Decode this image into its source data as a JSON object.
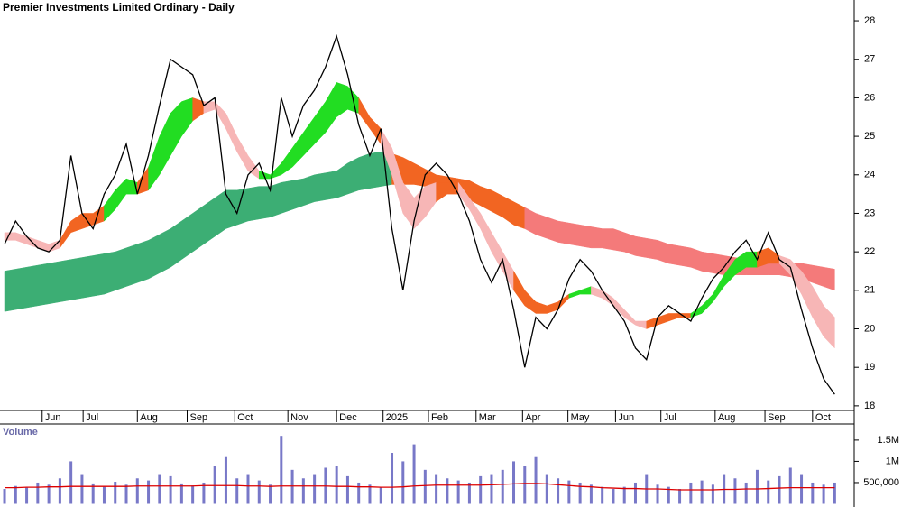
{
  "chart_data": [
    {
      "type": "price",
      "title": "Premier Investments Limited Ordinary - Daily",
      "xlim": [
        -0.41,
        76.6
      ],
      "ylim": [
        17.88,
        28.54
      ],
      "yticks": [
        18,
        19,
        20,
        21,
        22,
        23,
        24,
        25,
        26,
        27,
        28
      ],
      "xticks": [
        {
          "value": 3.4,
          "label": "Jun"
        },
        {
          "value": 7.1,
          "label": "Jul"
        },
        {
          "value": 12.0,
          "label": "Aug"
        },
        {
          "value": 16.5,
          "label": "Sep"
        },
        {
          "value": 20.8,
          "label": "Oct"
        },
        {
          "value": 25.6,
          "label": "Nov"
        },
        {
          "value": 30.0,
          "label": "Dec"
        },
        {
          "value": 34.2,
          "label": "2025"
        },
        {
          "value": 38.3,
          "label": "Feb"
        },
        {
          "value": 42.6,
          "label": "Mar"
        },
        {
          "value": 46.8,
          "label": "Apr"
        },
        {
          "value": 50.9,
          "label": "May"
        },
        {
          "value": 55.2,
          "label": "Jun"
        },
        {
          "value": 59.3,
          "label": "Jul"
        },
        {
          "value": 64.2,
          "label": "Aug"
        },
        {
          "value": 68.7,
          "label": "Sep"
        },
        {
          "value": 73.0,
          "label": "Oct"
        }
      ],
      "color": "#000000",
      "values": [
        22.2,
        22.8,
        22.4,
        22.1,
        22.0,
        22.3,
        24.5,
        23.0,
        22.6,
        23.5,
        24.0,
        24.8,
        23.5,
        24.5,
        25.8,
        27.0,
        26.8,
        26.6,
        25.8,
        26.0,
        23.5,
        23.0,
        24.0,
        24.3,
        23.6,
        26.0,
        25.0,
        25.8,
        26.2,
        26.8,
        27.6,
        26.6,
        25.3,
        24.5,
        25.2,
        22.6,
        21.0,
        22.8,
        24.0,
        24.3,
        24.0,
        23.5,
        22.8,
        21.8,
        21.2,
        21.8,
        20.5,
        19.0,
        20.3,
        20.0,
        20.5,
        21.3,
        21.8,
        21.5,
        21.0,
        20.6,
        20.2,
        19.5,
        19.2,
        20.3,
        20.6,
        20.4,
        20.2,
        20.8,
        21.3,
        21.6,
        22.0,
        22.3,
        21.8,
        22.5,
        21.8,
        21.6,
        20.5,
        19.5,
        18.7,
        18.3
      ],
      "bands": [
        {
          "lower": [
            20.45,
            20.5,
            20.55,
            20.6,
            20.65,
            20.7,
            20.75,
            20.8,
            20.85,
            20.9,
            21.0,
            21.1,
            21.2,
            21.3,
            21.45,
            21.6,
            21.8,
            22.0,
            22.2,
            22.4,
            22.6,
            22.7,
            22.8,
            22.85,
            22.9,
            23.0,
            23.1,
            23.2,
            23.3,
            23.35,
            23.4,
            23.5,
            23.6,
            23.65,
            23.7,
            23.75,
            23.75,
            23.75,
            23.7,
            23.65,
            23.6,
            23.5,
            23.35,
            23.2,
            23.05,
            22.9,
            22.7,
            22.6,
            22.45,
            22.35,
            22.25,
            22.2,
            22.15,
            22.1,
            22.1,
            22.05,
            22.0,
            21.9,
            21.85,
            21.8,
            21.7,
            21.65,
            21.6,
            21.5,
            21.45,
            21.4,
            21.4,
            21.4,
            21.4,
            21.4,
            21.4,
            21.35,
            21.3,
            21.2,
            21.1,
            21.0
          ],
          "upper": [
            21.5,
            21.55,
            21.6,
            21.65,
            21.7,
            21.75,
            21.8,
            21.85,
            21.9,
            21.95,
            22.0,
            22.1,
            22.2,
            22.3,
            22.45,
            22.6,
            22.8,
            23.0,
            23.2,
            23.4,
            23.6,
            23.6,
            23.65,
            23.7,
            23.7,
            23.8,
            23.85,
            23.9,
            24.0,
            24.05,
            24.1,
            24.3,
            24.45,
            24.55,
            24.6,
            24.55,
            24.45,
            24.3,
            24.15,
            24.0,
            23.95,
            23.9,
            23.85,
            23.7,
            23.6,
            23.45,
            23.3,
            23.15,
            23.0,
            22.9,
            22.8,
            22.75,
            22.7,
            22.65,
            22.6,
            22.6,
            22.5,
            22.4,
            22.35,
            22.3,
            22.2,
            22.15,
            22.1,
            22.0,
            21.95,
            21.9,
            21.85,
            21.8,
            21.8,
            21.75,
            21.75,
            21.7,
            21.7,
            21.65,
            21.6,
            21.55
          ],
          "colors": [
            {
              "from": 0,
              "color": "#3cae74"
            },
            {
              "from": 35,
              "color": "#f26522"
            },
            {
              "from": 47,
              "color": "#f47a7a"
            }
          ]
        },
        {
          "lower": [
            22.3,
            22.3,
            22.2,
            22.1,
            22.0,
            22.1,
            22.5,
            22.6,
            22.7,
            22.8,
            23.1,
            23.5,
            23.5,
            23.6,
            24.0,
            24.5,
            25.0,
            25.4,
            25.6,
            25.7,
            25.2,
            24.6,
            24.1,
            23.9,
            23.9,
            24.0,
            24.2,
            24.5,
            24.8,
            25.1,
            25.5,
            25.7,
            25.6,
            25.2,
            24.8,
            24.0,
            23.0,
            22.6,
            22.9,
            23.3,
            23.5,
            23.5,
            23.1,
            22.6,
            22.0,
            21.5,
            21.0,
            20.6,
            20.4,
            20.4,
            20.5,
            20.8,
            20.9,
            20.9,
            20.8,
            20.6,
            20.3,
            20.1,
            20.0,
            20.1,
            20.2,
            20.3,
            20.3,
            20.4,
            20.7,
            21.1,
            21.4,
            21.6,
            21.6,
            21.7,
            21.7,
            21.4,
            20.9,
            20.3,
            19.8,
            19.5
          ],
          "upper": [
            22.5,
            22.5,
            22.4,
            22.3,
            22.2,
            22.3,
            22.8,
            23.0,
            23.0,
            23.2,
            23.6,
            23.9,
            23.8,
            24.2,
            25.0,
            25.6,
            25.9,
            26.0,
            25.9,
            25.9,
            25.6,
            25.0,
            24.5,
            24.1,
            24.0,
            24.3,
            24.7,
            25.1,
            25.5,
            25.9,
            26.4,
            26.3,
            26.0,
            25.5,
            25.2,
            24.7,
            23.8,
            23.4,
            23.7,
            23.8,
            23.8,
            23.8,
            23.4,
            23.0,
            22.5,
            22.0,
            21.5,
            21.0,
            20.7,
            20.6,
            20.7,
            20.9,
            21.0,
            21.1,
            21.0,
            20.8,
            20.5,
            20.2,
            20.2,
            20.3,
            20.4,
            20.4,
            20.4,
            20.6,
            20.9,
            21.4,
            21.8,
            22.0,
            22.0,
            22.1,
            21.9,
            21.8,
            21.5,
            21.1,
            20.6,
            20.3
          ],
          "colors": [
            {
              "from": 0,
              "color": "#f7b6b6"
            },
            {
              "from": 5,
              "color": "#f26522"
            },
            {
              "from": 9,
              "color": "#22dd22"
            },
            {
              "from": 12,
              "color": "#f26522"
            },
            {
              "from": 13,
              "color": "#22dd22"
            },
            {
              "from": 17,
              "color": "#f26522"
            },
            {
              "from": 18,
              "color": "#f7b6b6"
            },
            {
              "from": 23,
              "color": "#22dd22"
            },
            {
              "from": 32,
              "color": "#f26522"
            },
            {
              "from": 34,
              "color": "#f7b6b6"
            },
            {
              "from": 39,
              "color": "#f26522"
            },
            {
              "from": 41,
              "color": "#f7b6b6"
            },
            {
              "from": 46,
              "color": "#f26522"
            },
            {
              "from": 51,
              "color": "#22dd22"
            },
            {
              "from": 53,
              "color": "#f7b6b6"
            },
            {
              "from": 58,
              "color": "#f26522"
            },
            {
              "from": 62,
              "color": "#22dd22"
            },
            {
              "from": 68,
              "color": "#f26522"
            },
            {
              "from": 70,
              "color": "#f7b6b6"
            }
          ]
        }
      ]
    },
    {
      "type": "volume",
      "title": "Volume",
      "xlim": [
        -0.41,
        76.6
      ],
      "ylim": [
        0,
        1880000
      ],
      "yticks": [
        {
          "value": 500000,
          "label": "500,000"
        },
        {
          "value": 1000000,
          "label": "1M"
        },
        {
          "value": 1500000,
          "label": "1.5M"
        }
      ],
      "color": "#7878c8",
      "ma_color": "#dd0000",
      "values": [
        350000,
        420000,
        380000,
        500000,
        450000,
        600000,
        1000000,
        700000,
        480000,
        400000,
        520000,
        450000,
        600000,
        550000,
        700000,
        650000,
        480000,
        430000,
        500000,
        900000,
        1100000,
        600000,
        700000,
        550000,
        450000,
        1600000,
        800000,
        600000,
        700000,
        850000,
        900000,
        650000,
        500000,
        450000,
        400000,
        1200000,
        1000000,
        1400000,
        800000,
        700000,
        600000,
        550000,
        500000,
        650000,
        700000,
        800000,
        1000000,
        900000,
        1100000,
        700000,
        600000,
        550000,
        500000,
        450000,
        400000,
        350000,
        400000,
        500000,
        700000,
        450000,
        400000,
        350000,
        500000,
        550000,
        450000,
        700000,
        600000,
        500000,
        800000,
        550000,
        650000,
        850000,
        700000,
        500000,
        450000,
        500000
      ],
      "ma": [
        380000,
        380000,
        390000,
        390000,
        400000,
        400000,
        410000,
        410000,
        410000,
        410000,
        410000,
        410000,
        420000,
        420000,
        420000,
        420000,
        420000,
        420000,
        430000,
        430000,
        430000,
        430000,
        420000,
        420000,
        410000,
        420000,
        420000,
        420000,
        420000,
        420000,
        410000,
        410000,
        400000,
        400000,
        390000,
        390000,
        400000,
        420000,
        430000,
        440000,
        440000,
        440000,
        440000,
        440000,
        450000,
        460000,
        470000,
        480000,
        480000,
        470000,
        450000,
        430000,
        410000,
        400000,
        380000,
        370000,
        360000,
        360000,
        350000,
        350000,
        340000,
        330000,
        330000,
        330000,
        330000,
        340000,
        340000,
        350000,
        350000,
        360000,
        370000,
        380000,
        380000,
        380000,
        380000,
        380000
      ]
    }
  ]
}
